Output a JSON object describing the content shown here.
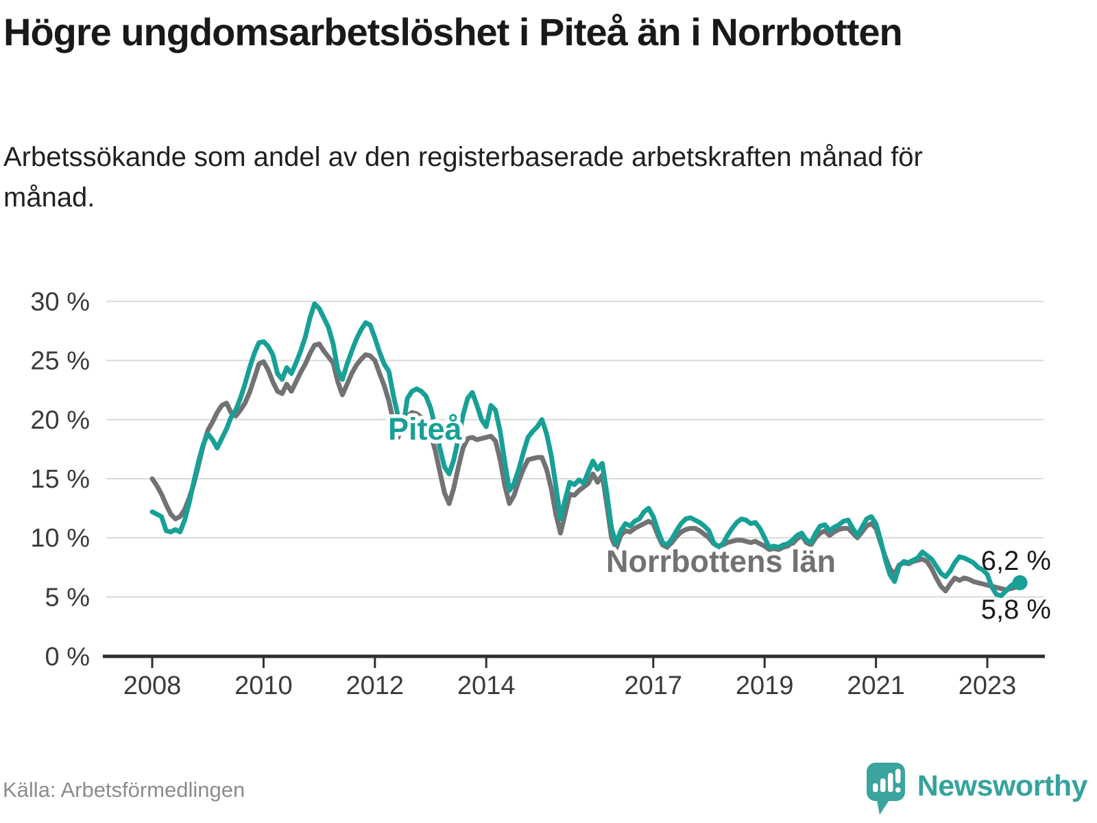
{
  "header": {
    "title": "Högre ungdomsarbetslöshet i Piteå än i Norrbotten",
    "subtitle": "Arbetssökande som andel av den registerbaserade arbetskraften månad för månad."
  },
  "footer": {
    "source": "Källa: Arbetsförmedlingen",
    "brand": "Newsworthy"
  },
  "colors": {
    "background": "#ffffff",
    "title_text": "#191919",
    "subtitle_text": "#202020",
    "tick_label": "#3a3a3a",
    "grid": "#d9d9d9",
    "axis": "#2f2f2f",
    "series_teal": "#18a096",
    "series_gray": "#727275",
    "end_label": "#1a1a1a",
    "label_halo": "#ffffff",
    "source_text": "#8c8c8c",
    "logo_teal": "#3ba49e"
  },
  "chart_data": {
    "type": "line",
    "frequency": "monthly",
    "x_start": "2008-01",
    "x_end": "2023-07",
    "x_ticks": [
      2008,
      2010,
      2012,
      2014,
      2017,
      2019,
      2021,
      2023
    ],
    "y_ticks": [
      0,
      5,
      10,
      15,
      20,
      25,
      30
    ],
    "y_tick_suffix": " %",
    "ylim": [
      0,
      31
    ],
    "grid": true,
    "legend_position": "inline-labels",
    "series": [
      {
        "name": "Norrbottens län",
        "color": "#727275",
        "end_label": "5,8 %",
        "end_dot": false,
        "values": [
          15.0,
          14.4,
          13.7,
          12.8,
          12.0,
          11.6,
          11.8,
          12.4,
          13.4,
          14.6,
          16.2,
          17.8,
          19.1,
          19.8,
          20.6,
          21.2,
          21.4,
          20.6,
          20.3,
          20.8,
          21.4,
          22.3,
          23.5,
          24.7,
          24.9,
          24.2,
          23.2,
          22.4,
          22.2,
          23.0,
          22.4,
          23.2,
          24.0,
          24.7,
          25.6,
          26.3,
          26.4,
          25.8,
          25.3,
          24.8,
          23.2,
          22.1,
          23.0,
          23.9,
          24.6,
          25.1,
          25.5,
          25.4,
          25.0,
          23.9,
          22.9,
          21.6,
          19.8,
          18.5,
          19.6,
          20.3,
          20.6,
          20.5,
          20.2,
          19.6,
          18.8,
          17.4,
          15.6,
          13.8,
          12.9,
          14.2,
          16.0,
          17.6,
          18.4,
          18.5,
          18.3,
          18.4,
          18.5,
          18.6,
          18.2,
          16.6,
          14.4,
          12.9,
          13.6,
          14.8,
          15.8,
          16.6,
          16.7,
          16.8,
          16.8,
          15.8,
          14.2,
          12.0,
          10.4,
          12.0,
          13.7,
          13.6,
          14.0,
          14.3,
          14.6,
          15.4,
          14.7,
          15.3,
          12.8,
          10.0,
          9.1,
          10.2,
          10.6,
          10.5,
          10.8,
          11.0,
          11.2,
          11.4,
          11.2,
          10.2,
          9.4,
          9.2,
          9.6,
          10.1,
          10.5,
          10.7,
          10.8,
          10.8,
          10.6,
          10.3,
          10.0,
          9.5,
          9.3,
          9.4,
          9.6,
          9.7,
          9.8,
          9.8,
          9.7,
          9.6,
          9.7,
          9.5,
          9.3,
          9.0,
          9.1,
          9.0,
          9.2,
          9.3,
          9.5,
          9.9,
          10.2,
          9.6,
          9.4,
          10.0,
          10.4,
          10.6,
          10.2,
          10.5,
          10.7,
          10.8,
          10.8,
          10.4,
          10.0,
          10.5,
          11.0,
          11.2,
          10.8,
          9.6,
          8.4,
          7.4,
          6.9,
          7.7,
          7.9,
          7.8,
          8.0,
          8.1,
          8.2,
          8.0,
          7.4,
          6.6,
          5.9,
          5.5,
          6.1,
          6.6,
          6.4,
          6.6,
          6.5,
          6.3,
          6.2,
          6.1,
          6.0,
          5.9,
          5.8,
          5.7,
          5.6,
          5.7,
          5.8
        ]
      },
      {
        "name": "Piteå",
        "color": "#18a096",
        "end_label": "6,2 %",
        "end_dot": true,
        "values": [
          12.2,
          12.0,
          11.8,
          10.6,
          10.5,
          10.7,
          10.5,
          11.5,
          13.0,
          14.8,
          16.5,
          17.9,
          18.8,
          18.3,
          17.6,
          18.4,
          19.2,
          20.2,
          20.8,
          21.8,
          23.0,
          24.4,
          25.6,
          26.5,
          26.6,
          26.2,
          25.5,
          23.9,
          23.4,
          24.4,
          23.9,
          24.8,
          25.8,
          27.0,
          28.6,
          29.8,
          29.4,
          28.6,
          27.8,
          26.4,
          24.2,
          23.4,
          24.7,
          25.8,
          26.8,
          27.6,
          28.2,
          28.0,
          26.9,
          25.7,
          24.7,
          24.1,
          22.0,
          20.3,
          19.2,
          21.8,
          22.4,
          22.6,
          22.4,
          22.0,
          21.0,
          19.4,
          17.6,
          16.0,
          15.4,
          16.6,
          18.4,
          20.4,
          21.8,
          22.3,
          21.2,
          20.0,
          19.4,
          21.2,
          20.8,
          19.0,
          16.4,
          14.0,
          14.6,
          15.8,
          17.2,
          18.5,
          19.0,
          19.4,
          20.0,
          18.8,
          17.0,
          14.4,
          11.6,
          13.2,
          14.7,
          14.5,
          14.9,
          14.6,
          15.6,
          16.5,
          15.8,
          16.3,
          13.8,
          10.8,
          9.5,
          10.6,
          11.2,
          11.0,
          11.4,
          11.6,
          12.2,
          12.5,
          11.8,
          10.6,
          9.6,
          9.4,
          9.9,
          10.6,
          11.2,
          11.6,
          11.7,
          11.5,
          11.3,
          11.0,
          10.6,
          9.6,
          9.2,
          9.5,
          10.2,
          10.8,
          11.3,
          11.6,
          11.5,
          11.2,
          11.3,
          10.8,
          10.0,
          9.2,
          9.3,
          9.2,
          9.4,
          9.5,
          9.8,
          10.2,
          10.4,
          9.8,
          9.6,
          10.4,
          11.0,
          11.1,
          10.6,
          10.9,
          11.1,
          11.4,
          11.5,
          10.8,
          10.2,
          10.9,
          11.6,
          11.8,
          11.2,
          9.8,
          8.2,
          6.9,
          6.3,
          7.6,
          8.0,
          7.9,
          8.1,
          8.3,
          8.8,
          8.5,
          8.2,
          7.6,
          7.0,
          6.7,
          7.2,
          7.9,
          8.4,
          8.3,
          8.1,
          7.9,
          7.5,
          7.3,
          6.9,
          5.8,
          5.2,
          5.1,
          5.5,
          5.9,
          6.2
        ]
      }
    ]
  }
}
